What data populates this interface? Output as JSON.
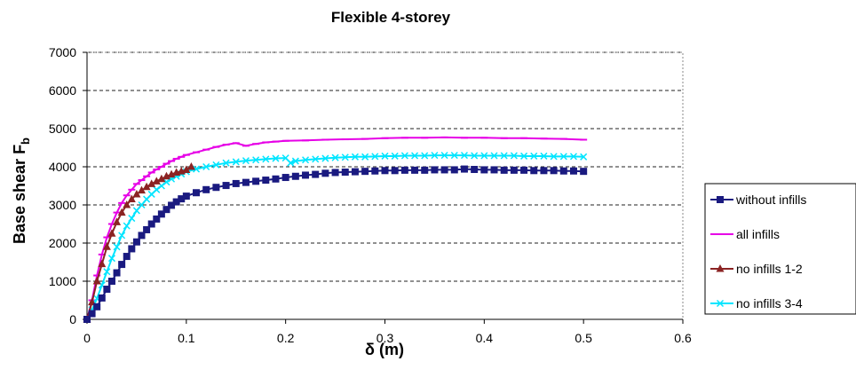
{
  "chart_data": {
    "type": "line",
    "title": "Flexible 4-storey",
    "xlabel": "δ (m)",
    "ylabel": "Base shear",
    "ylabel_main": "Base shear  F",
    "ylabel_sub": "b",
    "xlim": [
      0,
      0.6
    ],
    "ylim": [
      0,
      7000
    ],
    "x_ticks": [
      "0",
      "0.1",
      "0.2",
      "0.3",
      "0.4",
      "0.5",
      "0.6"
    ],
    "y_ticks": [
      "0",
      "1000",
      "2000",
      "3000",
      "4000",
      "5000",
      "6000",
      "7000"
    ],
    "grid": "horizontal dashed",
    "legend_position": "right",
    "series": [
      {
        "name": "without infills",
        "color": "#1a1a80",
        "marker": "square",
        "x": [
          0,
          0.005,
          0.01,
          0.015,
          0.02,
          0.025,
          0.03,
          0.035,
          0.04,
          0.045,
          0.05,
          0.055,
          0.06,
          0.065,
          0.07,
          0.075,
          0.08,
          0.085,
          0.09,
          0.095,
          0.1,
          0.11,
          0.12,
          0.13,
          0.14,
          0.15,
          0.16,
          0.17,
          0.18,
          0.19,
          0.2,
          0.21,
          0.22,
          0.23,
          0.24,
          0.25,
          0.26,
          0.27,
          0.28,
          0.29,
          0.3,
          0.31,
          0.32,
          0.33,
          0.34,
          0.35,
          0.36,
          0.37,
          0.38,
          0.39,
          0.4,
          0.41,
          0.42,
          0.43,
          0.44,
          0.45,
          0.46,
          0.47,
          0.48,
          0.49,
          0.5
        ],
        "y": [
          0,
          150,
          330,
          560,
          790,
          1000,
          1220,
          1440,
          1650,
          1850,
          2030,
          2200,
          2350,
          2500,
          2630,
          2760,
          2880,
          2990,
          3080,
          3160,
          3230,
          3320,
          3400,
          3460,
          3510,
          3560,
          3590,
          3620,
          3650,
          3680,
          3720,
          3750,
          3780,
          3800,
          3830,
          3850,
          3860,
          3870,
          3880,
          3890,
          3900,
          3900,
          3910,
          3910,
          3910,
          3920,
          3920,
          3920,
          3940,
          3930,
          3920,
          3920,
          3910,
          3910,
          3910,
          3900,
          3900,
          3900,
          3890,
          3890,
          3880
        ]
      },
      {
        "name": "all infills",
        "color": "#e600e6",
        "marker": "dash",
        "x": [
          0,
          0.005,
          0.01,
          0.015,
          0.02,
          0.025,
          0.03,
          0.035,
          0.04,
          0.045,
          0.05,
          0.055,
          0.06,
          0.065,
          0.07,
          0.075,
          0.08,
          0.085,
          0.09,
          0.095,
          0.1,
          0.11,
          0.12,
          0.13,
          0.14,
          0.15,
          0.16,
          0.17,
          0.18,
          0.19,
          0.2,
          0.22,
          0.24,
          0.26,
          0.28,
          0.3,
          0.32,
          0.34,
          0.36,
          0.38,
          0.4,
          0.42,
          0.44,
          0.46,
          0.48,
          0.5
        ],
        "y": [
          0,
          500,
          1150,
          1700,
          2150,
          2500,
          2800,
          3050,
          3250,
          3400,
          3550,
          3650,
          3750,
          3850,
          3930,
          4000,
          4080,
          4150,
          4210,
          4260,
          4310,
          4380,
          4450,
          4520,
          4580,
          4620,
          4550,
          4600,
          4640,
          4660,
          4680,
          4690,
          4710,
          4720,
          4730,
          4750,
          4760,
          4760,
          4770,
          4760,
          4760,
          4750,
          4750,
          4740,
          4730,
          4710
        ]
      },
      {
        "name": "no infills 1-2",
        "color": "#8b2323",
        "marker": "triangle",
        "x": [
          0,
          0.005,
          0.01,
          0.015,
          0.02,
          0.025,
          0.03,
          0.035,
          0.04,
          0.045,
          0.05,
          0.055,
          0.06,
          0.065,
          0.07,
          0.075,
          0.08,
          0.085,
          0.09,
          0.095,
          0.1,
          0.105
        ],
        "y": [
          0,
          450,
          1000,
          1450,
          1900,
          2250,
          2550,
          2800,
          3000,
          3150,
          3280,
          3380,
          3470,
          3550,
          3620,
          3680,
          3750,
          3800,
          3850,
          3880,
          3920,
          4000
        ]
      },
      {
        "name": "no infills 3-4",
        "color": "#00e5ff",
        "marker": "x",
        "x": [
          0,
          0.005,
          0.01,
          0.015,
          0.02,
          0.025,
          0.03,
          0.035,
          0.04,
          0.045,
          0.05,
          0.055,
          0.06,
          0.065,
          0.07,
          0.075,
          0.08,
          0.085,
          0.09,
          0.095,
          0.1,
          0.11,
          0.12,
          0.13,
          0.14,
          0.15,
          0.16,
          0.17,
          0.18,
          0.19,
          0.2,
          0.205,
          0.21,
          0.22,
          0.23,
          0.24,
          0.25,
          0.26,
          0.27,
          0.28,
          0.29,
          0.3,
          0.31,
          0.32,
          0.33,
          0.34,
          0.35,
          0.36,
          0.37,
          0.38,
          0.39,
          0.4,
          0.41,
          0.42,
          0.43,
          0.44,
          0.45,
          0.46,
          0.47,
          0.48,
          0.49,
          0.5
        ],
        "y": [
          0,
          250,
          550,
          900,
          1250,
          1600,
          1900,
          2200,
          2450,
          2650,
          2850,
          3000,
          3150,
          3280,
          3400,
          3500,
          3600,
          3680,
          3750,
          3810,
          3870,
          3940,
          4000,
          4050,
          4100,
          4130,
          4160,
          4180,
          4200,
          4220,
          4230,
          4100,
          4150,
          4180,
          4200,
          4220,
          4240,
          4250,
          4260,
          4260,
          4270,
          4280,
          4280,
          4290,
          4290,
          4290,
          4300,
          4300,
          4300,
          4300,
          4290,
          4290,
          4290,
          4290,
          4290,
          4280,
          4280,
          4280,
          4270,
          4270,
          4270,
          4260
        ]
      }
    ]
  }
}
